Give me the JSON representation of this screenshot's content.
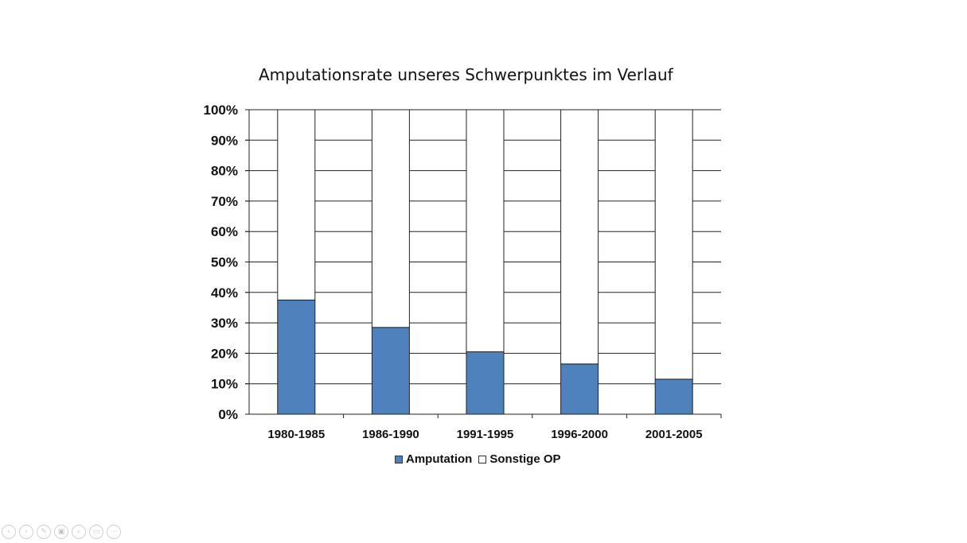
{
  "chart_data": {
    "type": "bar",
    "title": "Amputationsrate unseres Schwerpunktes im Verlauf",
    "xlabel": "",
    "ylabel": "",
    "ylim": [
      0,
      100
    ],
    "yticks": [
      "0%",
      "10%",
      "20%",
      "30%",
      "40%",
      "50%",
      "60%",
      "70%",
      "80%",
      "90%",
      "100%"
    ],
    "categories": [
      "1980-1985",
      "1986-1990",
      "1991-1995",
      "1996-2000",
      "2001-2005"
    ],
    "series": [
      {
        "name": "Amputation",
        "values": [
          37.5,
          28.5,
          20.5,
          16.5,
          11.5
        ],
        "color": "#4f81bd"
      },
      {
        "name": "Sonstige OP",
        "values": [
          62.5,
          71.5,
          79.5,
          83.5,
          88.5
        ],
        "color": "#ffffff"
      }
    ],
    "stacked_percent": true,
    "grid": true,
    "legend_position": "bottom"
  },
  "toolbar": {
    "icons": [
      "prev-icon",
      "next-icon",
      "pen-icon",
      "slides-icon",
      "zoom-icon",
      "subtitle-icon",
      "more-icon"
    ],
    "glyphs": [
      "‹",
      "›",
      "✎",
      "▣",
      "⌕",
      "▭",
      "⋯"
    ]
  }
}
